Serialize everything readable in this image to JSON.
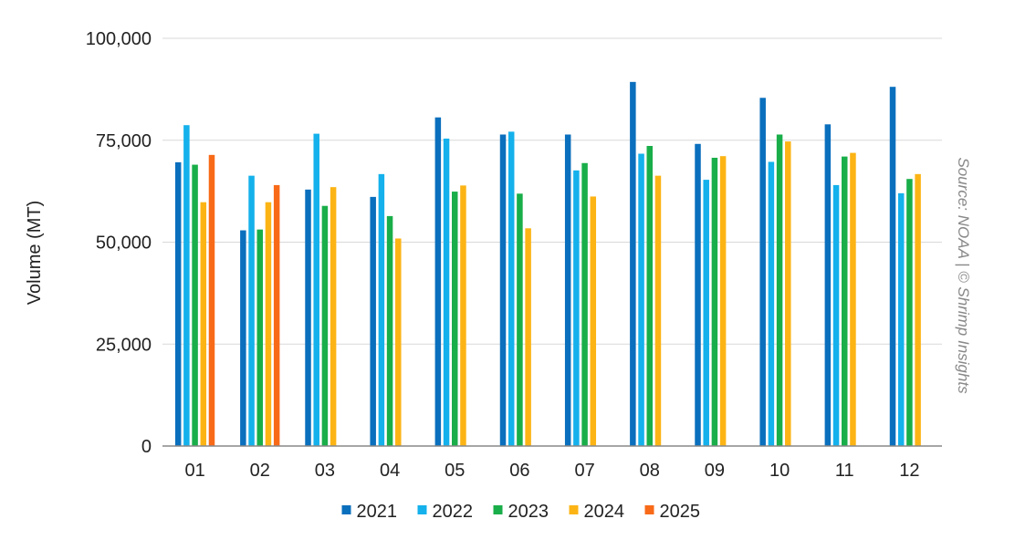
{
  "chart_data": {
    "type": "bar",
    "title": "",
    "xlabel": "",
    "ylabel": "Volume (MT)",
    "ylim": [
      0,
      100000
    ],
    "yticks": [
      0,
      25000,
      50000,
      75000,
      100000
    ],
    "ytick_labels": [
      "0",
      "25,000",
      "50,000",
      "75,000",
      "100,000"
    ],
    "grid": true,
    "legend_position": "bottom",
    "categories": [
      "01",
      "02",
      "03",
      "04",
      "05",
      "06",
      "07",
      "08",
      "09",
      "10",
      "11",
      "12"
    ],
    "series": [
      {
        "name": "2021",
        "color": "#0a6fbd",
        "values": [
          69600,
          52900,
          62900,
          61100,
          80600,
          76400,
          76400,
          89300,
          74100,
          85400,
          78900,
          88100
        ]
      },
      {
        "name": "2022",
        "color": "#14b1ec",
        "values": [
          78700,
          66300,
          76600,
          66700,
          75400,
          77100,
          67600,
          71700,
          65300,
          69700,
          64000,
          62000
        ]
      },
      {
        "name": "2023",
        "color": "#19ae49",
        "values": [
          69000,
          53100,
          58900,
          56400,
          62400,
          61900,
          69400,
          73600,
          70700,
          76400,
          71000,
          65500
        ]
      },
      {
        "name": "2024",
        "color": "#fcb415",
        "values": [
          59800,
          59800,
          63500,
          50900,
          63900,
          53400,
          61200,
          66300,
          71100,
          74700,
          71900,
          66700
        ]
      },
      {
        "name": "2025",
        "color": "#f86a18",
        "values": [
          71400,
          64000,
          null,
          null,
          null,
          null,
          null,
          null,
          null,
          null,
          null,
          null
        ]
      }
    ],
    "source": "Source: NOAA | © Shrimp Insights"
  }
}
